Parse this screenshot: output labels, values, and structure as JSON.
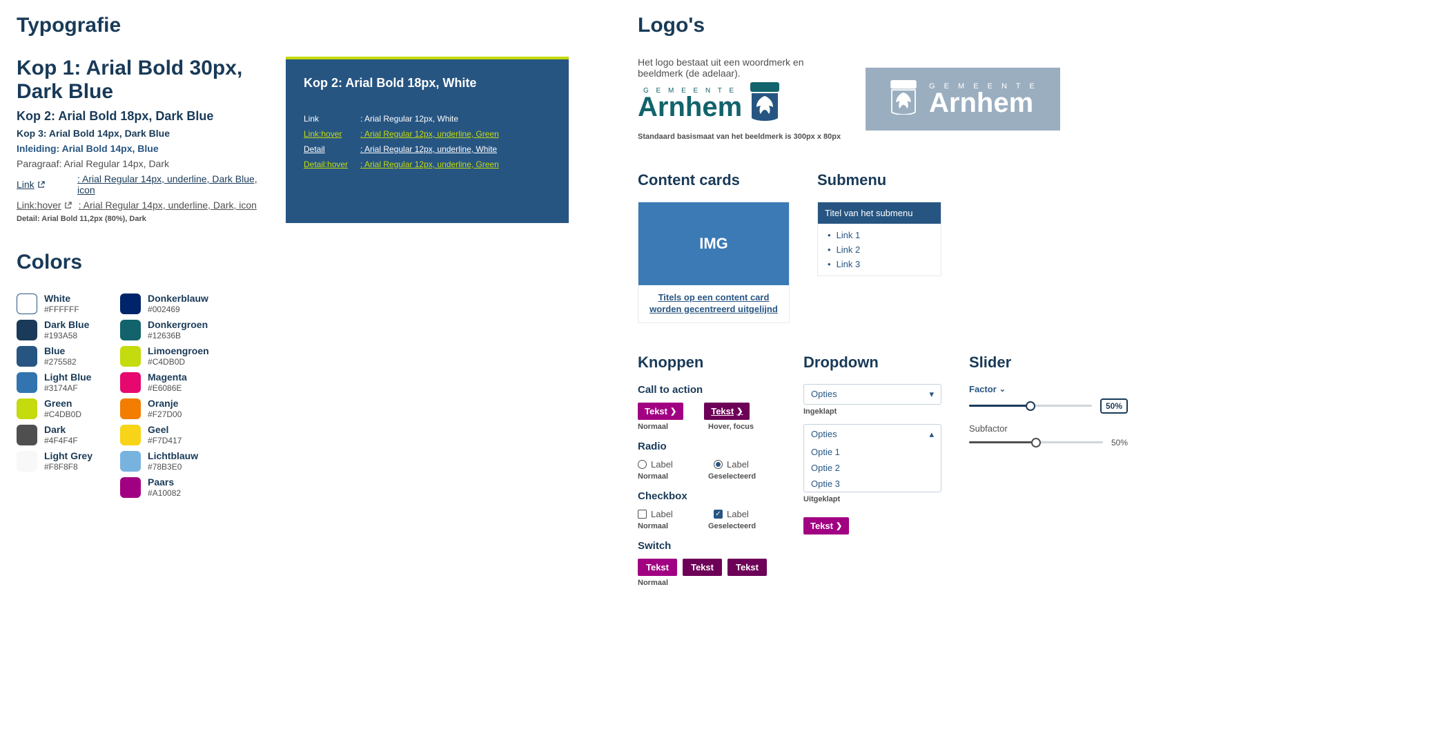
{
  "sections": {
    "typografie": "Typografie",
    "colors": "Colors",
    "logos": "Logo's",
    "content_cards": "Content cards",
    "submenu": "Submenu",
    "knoppen": "Knoppen",
    "dropdown": "Dropdown",
    "slider": "Slider"
  },
  "typo": {
    "kop1": "Kop 1: Arial Bold 30px, Dark Blue",
    "kop2": "Kop 2: Arial Bold 18px, Dark Blue",
    "kop3": "Kop 3: Arial Bold 14px, Dark Blue",
    "inleiding": "Inleiding: Arial Bold 14px, Blue",
    "paragraaf": "Paragraaf: Arial Regular 14px, Dark",
    "link_lbl": "Link",
    "link_val": ": Arial Regular 14px, underline, Dark Blue, icon",
    "linkhover_lbl": "Link:hover",
    "linkhover_val": ": Arial Regular 14px, underline, Dark, icon",
    "detail": "Detail: Arial Bold 11,2px (80%), Dark"
  },
  "box": {
    "kop2": "Kop 2: Arial Bold 18px, White",
    "rows": [
      {
        "lbl": "Link",
        "val": ": Arial Regular 12px, White",
        "green": false,
        "underline": false
      },
      {
        "lbl": "Link:hover",
        "val": ": Arial Regular 12px, underline, Green",
        "green": true,
        "underline": true
      },
      {
        "lbl": "Detail",
        "val": ": Arial Regular 12px, underline, White",
        "green": false,
        "underline": true
      },
      {
        "lbl": "Detail:hover",
        "val": ": Arial Regular 12px, underline, Green",
        "green": true,
        "underline": true
      }
    ]
  },
  "colors": {
    "left": [
      {
        "name": "White",
        "hex": "#FFFFFF"
      },
      {
        "name": "Dark Blue",
        "hex": "#193A58"
      },
      {
        "name": "Blue",
        "hex": "#275582"
      },
      {
        "name": "Light Blue",
        "hex": "#3174AF"
      },
      {
        "name": "Green",
        "hex": "#C4DB0D"
      },
      {
        "name": "Dark",
        "hex": "#4F4F4F"
      },
      {
        "name": "Light Grey",
        "hex": "#F8F8F8"
      }
    ],
    "right": [
      {
        "name": "Donkerblauw",
        "hex": "#002469"
      },
      {
        "name": "Donkergroen",
        "hex": "#12636B"
      },
      {
        "name": "Limoengroen",
        "hex": "#C4DB0D"
      },
      {
        "name": "Magenta",
        "hex": "#E6086E"
      },
      {
        "name": "Oranje",
        "hex": "#F27D00"
      },
      {
        "name": "Geel",
        "hex": "#F7D417"
      },
      {
        "name": "Lichtblauw",
        "hex": "#78B3E0"
      },
      {
        "name": "Paars",
        "hex": "#A10082"
      }
    ]
  },
  "logos": {
    "desc": "Het logo bestaat uit een woordmerk en beeldmerk (de adelaar).",
    "gemeente": "G E M E E N T E",
    "arnhem": "Arnhem",
    "std": "Standaard basismaat van het beeldmerk is 300px x 80px"
  },
  "card": {
    "img": "IMG",
    "line1": "Titels op een content card",
    "line2": "worden gecentreerd uitgelijnd"
  },
  "submenu": {
    "title": "Titel van het submenu",
    "items": [
      "Link 1",
      "Link 2",
      "Link 3"
    ]
  },
  "knoppen": {
    "cta": "Call to action",
    "tekst": "Tekst",
    "normaal": "Normaal",
    "hover": "Hover, focus",
    "radio": "Radio",
    "label": "Label",
    "ges": "Geselecteerd",
    "checkbox": "Checkbox",
    "switch": "Switch"
  },
  "dropdown": {
    "opties": "Opties",
    "ingeklapt": "Ingeklapt",
    "uitgeklapt": "Uitgeklapt",
    "items": [
      "Optie 1",
      "Optie 2",
      "Optie 3"
    ]
  },
  "slider": {
    "factor": "Factor",
    "subfactor": "Subfactor",
    "val": "50%",
    "fill_pct": 50
  },
  "palette": {
    "dark_blue": "#193a58",
    "blue": "#275582",
    "green": "#c4db0d",
    "paars": "#a10082",
    "dark": "#4f4f4f",
    "light_grey": "#f8f8f8"
  }
}
